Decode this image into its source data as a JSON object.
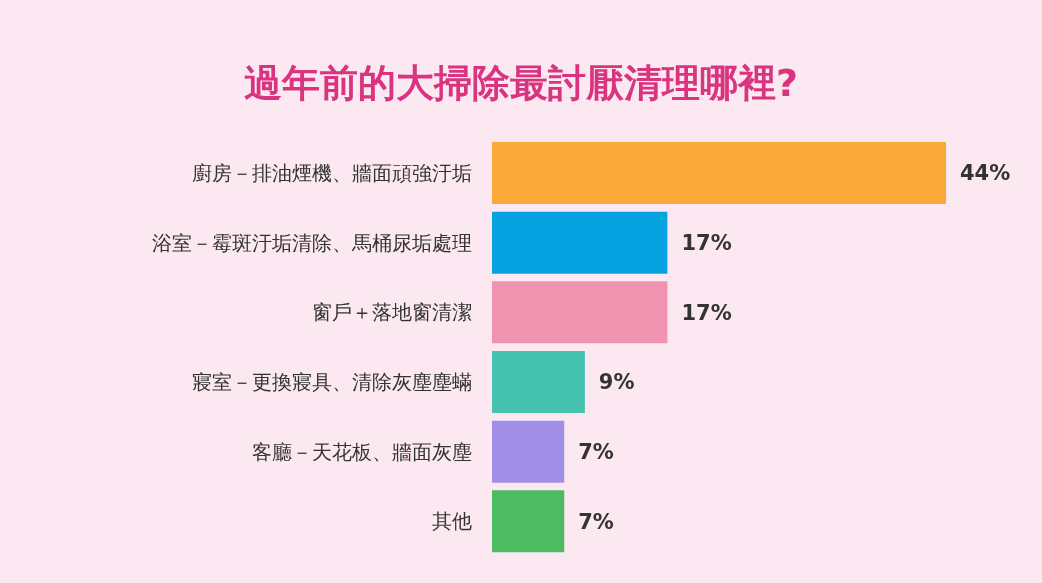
{
  "chart_data": {
    "type": "bar",
    "orientation": "horizontal",
    "title": "過年前的大掃除最討厭清理哪裡?",
    "categories": [
      "廚房－排油煙機、牆面頑強汙垢",
      "浴室－霉斑汙垢清除、馬桶尿垢處理",
      "窗戶＋落地窗清潔",
      "寢室－更換寢具、清除灰塵塵蟎",
      "客廳－天花板、牆面灰塵",
      "其他"
    ],
    "values": [
      44,
      17,
      17,
      9,
      7,
      7
    ],
    "value_labels": [
      "44%",
      "17%",
      "17%",
      "9%",
      "7%",
      "7%"
    ],
    "colors": [
      "#fbaa3a",
      "#05a3e0",
      "#ef93b0",
      "#45c2b0",
      "#a08fe6",
      "#4dbb62"
    ]
  }
}
